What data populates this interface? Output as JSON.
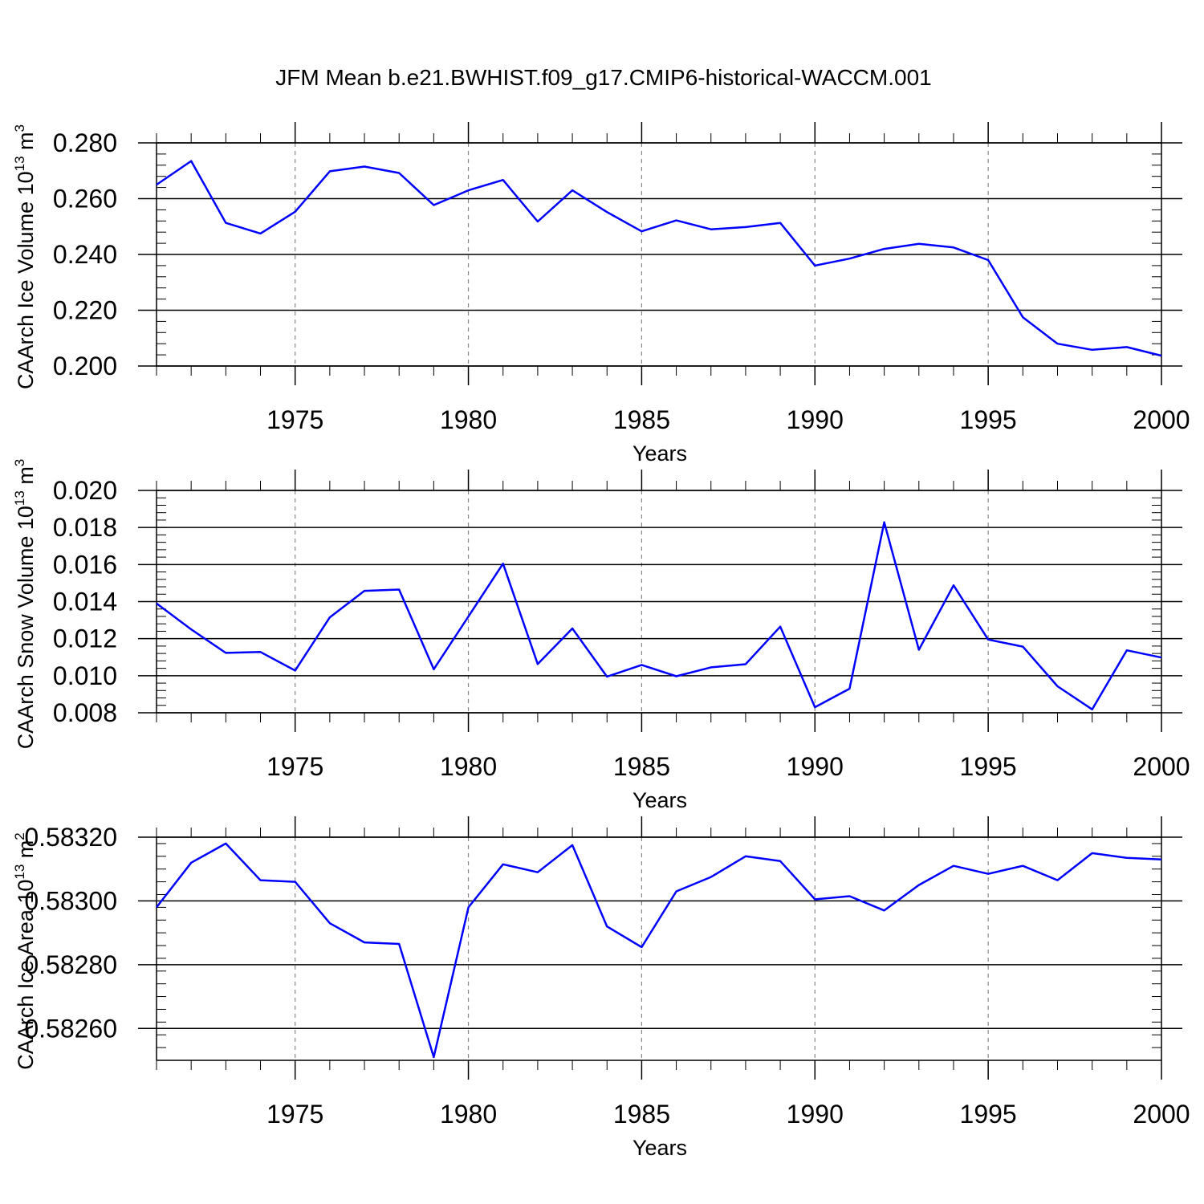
{
  "title": "JFM Mean b.e21.BWHIST.f09_g17.CMIP6-historical-WACCM.001",
  "colors": {
    "line": "#0000ff",
    "axis": "#000000",
    "grid": "#888888",
    "background": "#ffffff"
  },
  "chart_data": [
    {
      "type": "line",
      "ylabel": "CAArch Ice Volume 10",
      "ylabel_exp": "13",
      "ylabel_unit": " m",
      "ylabel_unit_exp": "3",
      "xlabel": "Years",
      "xlim": [
        1971,
        2000
      ],
      "ylim": [
        0.2,
        0.28
      ],
      "yticks": [
        0.2,
        0.22,
        0.24,
        0.26,
        0.28
      ],
      "yticklabels": [
        "0.200",
        "0.220",
        "0.240",
        "0.260",
        "0.280"
      ],
      "xticks": [
        1975,
        1980,
        1985,
        1990,
        1995,
        2000
      ],
      "xticklabels": [
        "1975",
        "1980",
        "1985",
        "1990",
        "1995",
        "2000"
      ],
      "x": [
        1971,
        1972,
        1973,
        1974,
        1975,
        1976,
        1977,
        1978,
        1979,
        1980,
        1981,
        1982,
        1983,
        1984,
        1985,
        1986,
        1987,
        1988,
        1989,
        1990,
        1991,
        1992,
        1993,
        1994,
        1995,
        1996,
        1997,
        1998,
        1999,
        2000
      ],
      "values": [
        0.265,
        0.2735,
        0.2513,
        0.2475,
        0.2553,
        0.2698,
        0.2715,
        0.2692,
        0.2577,
        0.263,
        0.2667,
        0.2518,
        0.263,
        0.2552,
        0.2483,
        0.2522,
        0.249,
        0.2498,
        0.2513,
        0.236,
        0.2385,
        0.242,
        0.2438,
        0.2425,
        0.238,
        0.2175,
        0.208,
        0.2058,
        0.2068,
        0.2037
      ]
    },
    {
      "type": "line",
      "ylabel": "CAArch Snow Volume 10",
      "ylabel_exp": "13",
      "ylabel_unit": " m",
      "ylabel_unit_exp": "3",
      "xlabel": "Years",
      "xlim": [
        1971,
        2000
      ],
      "ylim": [
        0.008,
        0.02
      ],
      "yticks": [
        0.008,
        0.01,
        0.012,
        0.014,
        0.016,
        0.018,
        0.02
      ],
      "yticklabels": [
        "0.008",
        "0.010",
        "0.012",
        "0.014",
        "0.016",
        "0.018",
        "0.020"
      ],
      "xticks": [
        1975,
        1980,
        1985,
        1990,
        1995,
        2000
      ],
      "xticklabels": [
        "1975",
        "1980",
        "1985",
        "1990",
        "1995",
        "2000"
      ],
      "x": [
        1971,
        1972,
        1973,
        1974,
        1975,
        1976,
        1977,
        1978,
        1979,
        1980,
        1981,
        1982,
        1983,
        1984,
        1985,
        1986,
        1987,
        1988,
        1989,
        1990,
        1991,
        1992,
        1993,
        1994,
        1995,
        1996,
        1997,
        1998,
        1999,
        2000
      ],
      "values": [
        0.0139,
        0.0125,
        0.01123,
        0.01128,
        0.01028,
        0.01315,
        0.01458,
        0.01465,
        0.01035,
        0.0132,
        0.01605,
        0.01063,
        0.01255,
        0.00995,
        0.01058,
        0.00997,
        0.01045,
        0.01062,
        0.01265,
        0.0083,
        0.0093,
        0.01828,
        0.0114,
        0.01488,
        0.01195,
        0.01157,
        0.00943,
        0.00818,
        0.01137,
        0.01098
      ]
    },
    {
      "type": "line",
      "ylabel": "CAArch Ice Area 10",
      "ylabel_exp": "13",
      "ylabel_unit": " m",
      "ylabel_unit_exp": "2",
      "xlabel": "Years",
      "xlim": [
        1971,
        2000
      ],
      "ylim": [
        0.5825,
        0.5832
      ],
      "yticks": [
        0.5826,
        0.5828,
        0.583,
        0.5832
      ],
      "yticklabels": [
        "0.58260",
        "0.58280",
        "0.58300",
        "0.58320"
      ],
      "xticks": [
        1975,
        1980,
        1985,
        1990,
        1995,
        2000
      ],
      "xticklabels": [
        "1975",
        "1980",
        "1985",
        "1990",
        "1995",
        "2000"
      ],
      "x": [
        1971,
        1972,
        1973,
        1974,
        1975,
        1976,
        1977,
        1978,
        1979,
        1980,
        1981,
        1982,
        1983,
        1984,
        1985,
        1986,
        1987,
        1988,
        1989,
        1990,
        1991,
        1992,
        1993,
        1994,
        1995,
        1996,
        1997,
        1998,
        1999,
        2000
      ],
      "values": [
        0.58298,
        0.58312,
        0.58318,
        0.583065,
        0.58306,
        0.58293,
        0.58287,
        0.582865,
        0.58251,
        0.58298,
        0.583115,
        0.58309,
        0.583175,
        0.58292,
        0.582855,
        0.58303,
        0.583075,
        0.58314,
        0.583125,
        0.583005,
        0.583015,
        0.58297,
        0.58305,
        0.58311,
        0.583085,
        0.58311,
        0.583065,
        0.58315,
        0.583135,
        0.58313
      ]
    }
  ]
}
